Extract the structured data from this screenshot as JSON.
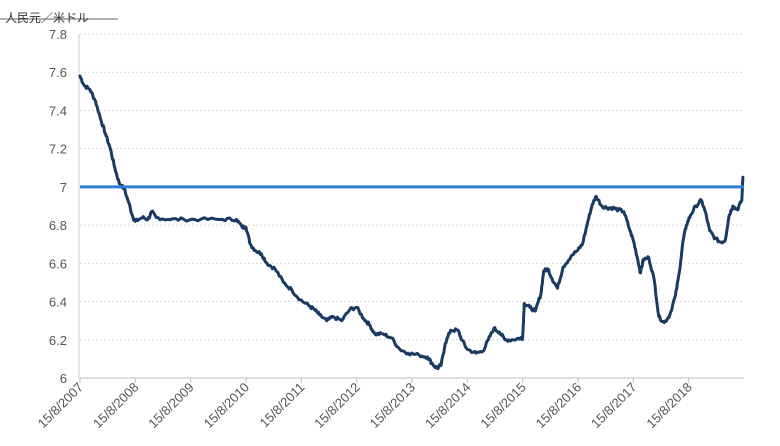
{
  "chart_data": {
    "type": "line",
    "ylabel": "人民元／米ドル",
    "xlabel": "",
    "title": "",
    "ylim": [
      6,
      7.8
    ],
    "yticks": [
      6,
      6.2,
      6.4,
      6.6,
      6.8,
      7,
      7.2,
      7.4,
      7.6,
      7.8
    ],
    "ytick_labels": [
      "6",
      "6.2",
      "6.4",
      "6.6",
      "6.8",
      "7",
      "7.2",
      "7.4",
      "7.6",
      "7.8"
    ],
    "xlim": [
      2007.622,
      2019.62
    ],
    "xticks": [
      2007.622,
      2008.622,
      2009.622,
      2010.622,
      2011.622,
      2012.622,
      2013.622,
      2014.622,
      2015.622,
      2016.622,
      2017.622,
      2018.622
    ],
    "xtick_labels": [
      "15/8/2007",
      "15/8/2008",
      "15/8/2009",
      "15/8/2010",
      "15/8/2011",
      "15/8/2012",
      "15/8/2013",
      "15/8/2014",
      "15/8/2015",
      "15/8/2016",
      "15/8/2017",
      "15/8/2018"
    ],
    "grid": "horizontal",
    "reference_line": {
      "y": 7.0,
      "color": "#2e7fd6"
    },
    "series": [
      {
        "color": "#1b3a63",
        "points": [
          [
            2007.62,
            7.58
          ],
          [
            2007.7,
            7.53
          ],
          [
            2007.8,
            7.51
          ],
          [
            2007.9,
            7.45
          ],
          [
            2008.0,
            7.35
          ],
          [
            2008.08,
            7.28
          ],
          [
            2008.17,
            7.2
          ],
          [
            2008.25,
            7.1
          ],
          [
            2008.33,
            7.02
          ],
          [
            2008.42,
            6.99
          ],
          [
            2008.5,
            6.92
          ],
          [
            2008.58,
            6.84
          ],
          [
            2008.62,
            6.82
          ],
          [
            2008.75,
            6.84
          ],
          [
            2008.85,
            6.83
          ],
          [
            2008.92,
            6.87
          ],
          [
            2009.0,
            6.84
          ],
          [
            2009.2,
            6.83
          ],
          [
            2009.5,
            6.83
          ],
          [
            2009.8,
            6.83
          ],
          [
            2010.2,
            6.83
          ],
          [
            2010.45,
            6.83
          ],
          [
            2010.55,
            6.79
          ],
          [
            2010.62,
            6.79
          ],
          [
            2010.7,
            6.7
          ],
          [
            2010.78,
            6.67
          ],
          [
            2010.9,
            6.65
          ],
          [
            2011.0,
            6.6
          ],
          [
            2011.15,
            6.57
          ],
          [
            2011.3,
            6.5
          ],
          [
            2011.45,
            6.46
          ],
          [
            2011.6,
            6.41
          ],
          [
            2011.75,
            6.38
          ],
          [
            2011.85,
            6.36
          ],
          [
            2011.95,
            6.33
          ],
          [
            2012.08,
            6.3
          ],
          [
            2012.2,
            6.32
          ],
          [
            2012.35,
            6.3
          ],
          [
            2012.5,
            6.36
          ],
          [
            2012.62,
            6.37
          ],
          [
            2012.75,
            6.31
          ],
          [
            2012.85,
            6.28
          ],
          [
            2012.95,
            6.23
          ],
          [
            2013.1,
            6.23
          ],
          [
            2013.25,
            6.21
          ],
          [
            2013.4,
            6.15
          ],
          [
            2013.55,
            6.13
          ],
          [
            2013.75,
            6.12
          ],
          [
            2013.9,
            6.11
          ],
          [
            2014.0,
            6.07
          ],
          [
            2014.08,
            6.05
          ],
          [
            2014.15,
            6.07
          ],
          [
            2014.22,
            6.18
          ],
          [
            2014.32,
            6.25
          ],
          [
            2014.45,
            6.25
          ],
          [
            2014.52,
            6.2
          ],
          [
            2014.62,
            6.15
          ],
          [
            2014.78,
            6.13
          ],
          [
            2014.9,
            6.14
          ],
          [
            2015.0,
            6.2
          ],
          [
            2015.1,
            6.26
          ],
          [
            2015.2,
            6.24
          ],
          [
            2015.3,
            6.2
          ],
          [
            2015.45,
            6.2
          ],
          [
            2015.58,
            6.21
          ],
          [
            2015.62,
            6.21
          ],
          [
            2015.65,
            6.39
          ],
          [
            2015.75,
            6.37
          ],
          [
            2015.85,
            6.35
          ],
          [
            2015.95,
            6.44
          ],
          [
            2016.0,
            6.56
          ],
          [
            2016.08,
            6.57
          ],
          [
            2016.15,
            6.52
          ],
          [
            2016.25,
            6.47
          ],
          [
            2016.35,
            6.58
          ],
          [
            2016.5,
            6.64
          ],
          [
            2016.62,
            6.67
          ],
          [
            2016.7,
            6.7
          ],
          [
            2016.8,
            6.82
          ],
          [
            2016.88,
            6.91
          ],
          [
            2016.95,
            6.95
          ],
          [
            2017.05,
            6.9
          ],
          [
            2017.15,
            6.89
          ],
          [
            2017.25,
            6.89
          ],
          [
            2017.35,
            6.88
          ],
          [
            2017.45,
            6.87
          ],
          [
            2017.55,
            6.78
          ],
          [
            2017.62,
            6.72
          ],
          [
            2017.7,
            6.62
          ],
          [
            2017.75,
            6.55
          ],
          [
            2017.8,
            6.62
          ],
          [
            2017.9,
            6.63
          ],
          [
            2018.0,
            6.51
          ],
          [
            2018.08,
            6.32
          ],
          [
            2018.18,
            6.29
          ],
          [
            2018.28,
            6.33
          ],
          [
            2018.38,
            6.43
          ],
          [
            2018.45,
            6.55
          ],
          [
            2018.52,
            6.72
          ],
          [
            2018.58,
            6.8
          ],
          [
            2018.65,
            6.85
          ],
          [
            2018.75,
            6.9
          ],
          [
            2018.85,
            6.93
          ],
          [
            2018.92,
            6.87
          ],
          [
            2019.0,
            6.77
          ],
          [
            2019.1,
            6.73
          ],
          [
            2019.2,
            6.71
          ],
          [
            2019.28,
            6.72
          ],
          [
            2019.35,
            6.85
          ],
          [
            2019.42,
            6.9
          ],
          [
            2019.5,
            6.88
          ],
          [
            2019.58,
            6.93
          ],
          [
            2019.6,
            7.05
          ]
        ]
      }
    ]
  }
}
